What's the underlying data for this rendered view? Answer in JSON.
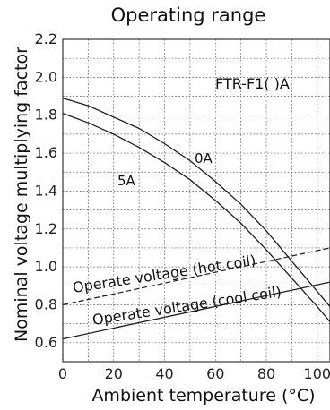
{
  "chart_data": {
    "type": "line",
    "title": "Operating range",
    "xlabel": "Ambient temperature (°C)",
    "ylabel": "Nominal voltage multiplying factor",
    "xlim": [
      0,
      105
    ],
    "ylim": [
      0.5,
      2.2
    ],
    "xticks": [
      "0",
      "20",
      "40",
      "60",
      "80",
      "100"
    ],
    "yticks": [
      "0.6",
      "0.8",
      "1.0",
      "1.2",
      "1.4",
      "1.6",
      "1.8",
      "2.0",
      "2.2"
    ],
    "grid": true,
    "model_label": "FTR-F1( )A",
    "series": [
      {
        "name": "0A",
        "style": "solid",
        "x": [
          0,
          10,
          20,
          30,
          40,
          50,
          60,
          70,
          80,
          90,
          100,
          105
        ],
        "y": [
          1.89,
          1.85,
          1.79,
          1.73,
          1.65,
          1.56,
          1.45,
          1.33,
          1.19,
          1.03,
          0.87,
          0.79
        ]
      },
      {
        "name": "5A",
        "style": "solid",
        "x": [
          0,
          10,
          20,
          30,
          40,
          50,
          60,
          70,
          80,
          90,
          100,
          105
        ],
        "y": [
          1.81,
          1.76,
          1.7,
          1.63,
          1.55,
          1.46,
          1.35,
          1.23,
          1.09,
          0.94,
          0.79,
          0.71
        ]
      },
      {
        "name": "Operate voltage (hot coil)",
        "style": "dashed",
        "x": [
          0,
          105
        ],
        "y": [
          0.8,
          1.1
        ]
      },
      {
        "name": "Operate voltage (cool coil)",
        "style": "solid",
        "x": [
          0,
          105
        ],
        "y": [
          0.62,
          0.92
        ]
      }
    ]
  }
}
